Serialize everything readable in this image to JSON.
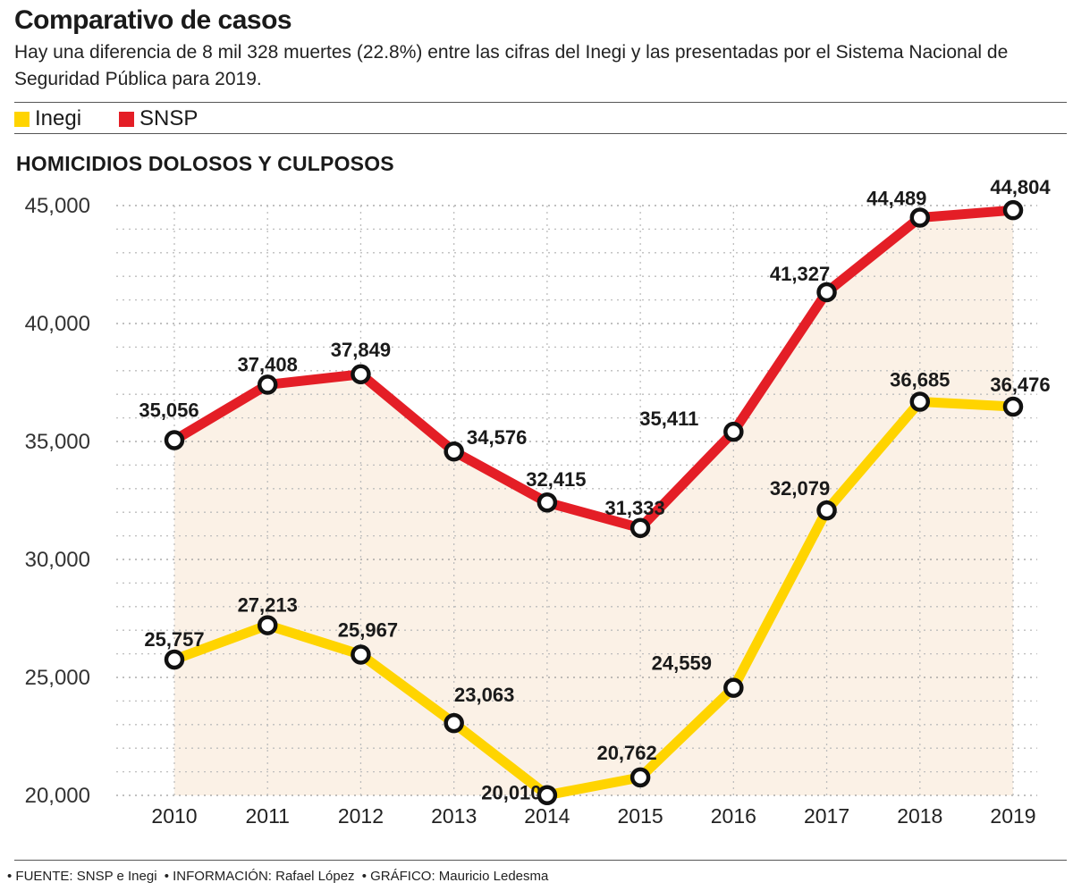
{
  "header": {
    "title": "Comparativo de casos",
    "subtitle": "Hay una diferencia de 8 mil 328 muertes (22.8%) entre las cifras del Inegi y las presentadas por el Sistema Nacional de Seguridad Pública para 2019."
  },
  "legend": {
    "inegi_label": "Inegi",
    "snsp_label": "SNSP"
  },
  "chart_heading": "HOMICIDIOS DOLOSOS Y CULPOSOS",
  "colors": {
    "inegi": "#FFD400",
    "snsp": "#E41E26",
    "fill": "#FBF1E6",
    "grid": "#bdbdbd"
  },
  "chart_data": {
    "type": "line",
    "title": "HOMICIDIOS DOLOSOS Y CULPOSOS",
    "x": [
      2010,
      2011,
      2012,
      2013,
      2014,
      2015,
      2016,
      2017,
      2018,
      2019
    ],
    "x_tick_labels": [
      "2010",
      "2011",
      "2012",
      "2013",
      "2014",
      "2015",
      "2016",
      "2017",
      "2018",
      "2019"
    ],
    "ylim": [
      20000,
      45000
    ],
    "y_ticks": [
      20000,
      25000,
      30000,
      35000,
      40000,
      45000
    ],
    "y_tick_labels": [
      "20,000",
      "25,000",
      "30,000",
      "35,000",
      "40,000",
      "45,000"
    ],
    "grid": true,
    "legend_position": "top-left",
    "series": [
      {
        "name": "Inegi",
        "values": [
          25757,
          27213,
          25967,
          23063,
          20010,
          20762,
          24559,
          32079,
          36685,
          36476
        ],
        "labels": [
          "25,757",
          "27,213",
          "25,967",
          "23,063",
          "20,010",
          "20,762",
          "24,559",
          "32,079",
          "36,685",
          "36,476"
        ]
      },
      {
        "name": "SNSP",
        "values": [
          35056,
          37408,
          37849,
          34576,
          32415,
          31333,
          35411,
          41327,
          44489,
          44804
        ],
        "labels": [
          "35,056",
          "37,408",
          "37,849",
          "34,576",
          "32,415",
          "31,333",
          "35,411",
          "41,327",
          "44,489",
          "44,804"
        ]
      }
    ]
  },
  "footer": {
    "source": "• FUENTE: SNSP e Inegi",
    "info": "• INFORMACIÓN:  Rafael López",
    "graphic": "• GRÁFICO: Mauricio Ledesma"
  }
}
